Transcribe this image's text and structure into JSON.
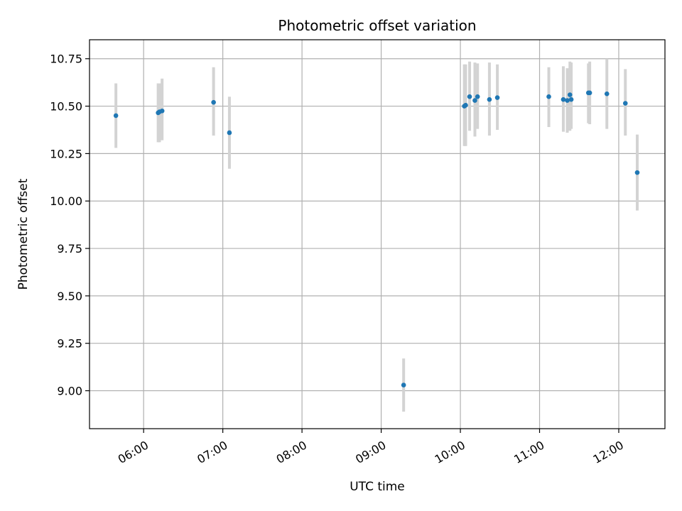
{
  "chart_data": {
    "type": "scatter",
    "title": "Photometric offset variation",
    "xlabel": "UTC time",
    "ylabel": "Photometric offset",
    "x_ticks": [
      "06:00",
      "07:00",
      "08:00",
      "09:00",
      "10:00",
      "11:00",
      "12:00"
    ],
    "y_ticks": [
      "9.00",
      "9.25",
      "9.50",
      "9.75",
      "10.00",
      "10.25",
      "10.50",
      "10.75"
    ],
    "xlim": [
      "05:19",
      "12:35"
    ],
    "ylim": [
      8.8,
      10.85
    ],
    "grid": true,
    "colors": {
      "point": "#1f77b4",
      "errorbar": "#d3d3d3",
      "grid": "#b0b0b0"
    },
    "points": [
      {
        "x": "05:39",
        "y": 10.45,
        "yerr_low": 10.28,
        "yerr_high": 10.62
      },
      {
        "x": "06:11",
        "y": 10.465,
        "yerr_low": 10.31,
        "yerr_high": 10.62
      },
      {
        "x": "06:12",
        "y": 10.47,
        "yerr_low": 10.31,
        "yerr_high": 10.62
      },
      {
        "x": "06:14",
        "y": 10.475,
        "yerr_low": 10.32,
        "yerr_high": 10.645
      },
      {
        "x": "06:53",
        "y": 10.52,
        "yerr_low": 10.345,
        "yerr_high": 10.705
      },
      {
        "x": "07:05",
        "y": 10.36,
        "yerr_low": 10.17,
        "yerr_high": 10.55
      },
      {
        "x": "09:17",
        "y": 9.03,
        "yerr_low": 8.89,
        "yerr_high": 9.17
      },
      {
        "x": "10:03",
        "y": 10.5,
        "yerr_low": 10.29,
        "yerr_high": 10.72
      },
      {
        "x": "10:04",
        "y": 10.505,
        "yerr_low": 10.29,
        "yerr_high": 10.72
      },
      {
        "x": "10:07",
        "y": 10.55,
        "yerr_low": 10.37,
        "yerr_high": 10.735
      },
      {
        "x": "10:11",
        "y": 10.53,
        "yerr_low": 10.34,
        "yerr_high": 10.73
      },
      {
        "x": "10:13",
        "y": 10.55,
        "yerr_low": 10.38,
        "yerr_high": 10.725
      },
      {
        "x": "10:22",
        "y": 10.535,
        "yerr_low": 10.345,
        "yerr_high": 10.73
      },
      {
        "x": "10:28",
        "y": 10.545,
        "yerr_low": 10.375,
        "yerr_high": 10.72
      },
      {
        "x": "11:07",
        "y": 10.55,
        "yerr_low": 10.39,
        "yerr_high": 10.705
      },
      {
        "x": "11:18",
        "y": 10.535,
        "yerr_low": 10.365,
        "yerr_high": 10.71
      },
      {
        "x": "11:21",
        "y": 10.53,
        "yerr_low": 10.36,
        "yerr_high": 10.7
      },
      {
        "x": "11:23",
        "y": 10.56,
        "yerr_low": 10.37,
        "yerr_high": 10.735
      },
      {
        "x": "11:24",
        "y": 10.535,
        "yerr_low": 10.38,
        "yerr_high": 10.73
      },
      {
        "x": "11:37",
        "y": 10.57,
        "yerr_low": 10.41,
        "yerr_high": 10.725
      },
      {
        "x": "11:38",
        "y": 10.57,
        "yerr_low": 10.405,
        "yerr_high": 10.735
      },
      {
        "x": "11:51",
        "y": 10.565,
        "yerr_low": 10.38,
        "yerr_high": 10.75
      },
      {
        "x": "12:05",
        "y": 10.515,
        "yerr_low": 10.345,
        "yerr_high": 10.695
      },
      {
        "x": "12:14",
        "y": 10.15,
        "yerr_low": 9.95,
        "yerr_high": 10.35
      }
    ]
  }
}
